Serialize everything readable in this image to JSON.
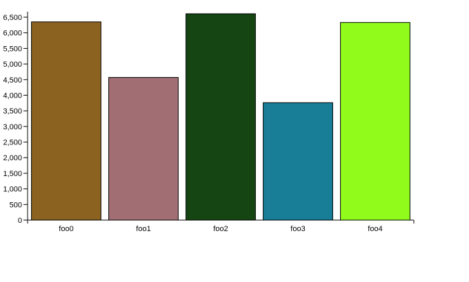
{
  "chart_data": {
    "type": "bar",
    "categories": [
      "foo0",
      "foo1",
      "foo2",
      "foo3",
      "foo4"
    ],
    "values": [
      6350,
      4570,
      6610,
      3760,
      6330
    ],
    "colors": [
      "#8b6220",
      "#a06e73",
      "#154512",
      "#187d96",
      "#91fc1c"
    ],
    "yticks": [
      0,
      500,
      1000,
      1500,
      2000,
      2500,
      3000,
      3500,
      4000,
      4500,
      5000,
      5500,
      6000,
      6500
    ],
    "ytick_labels": [
      "0",
      "500",
      "1,000",
      "1,500",
      "2,000",
      "2,500",
      "3,000",
      "3,500",
      "4,000",
      "4,500",
      "5,000",
      "5,500",
      "6,000",
      "6,500"
    ],
    "ylim": [
      0,
      6610
    ],
    "title": "",
    "xlabel": "",
    "ylabel": "",
    "grid": false,
    "legend": "none"
  }
}
